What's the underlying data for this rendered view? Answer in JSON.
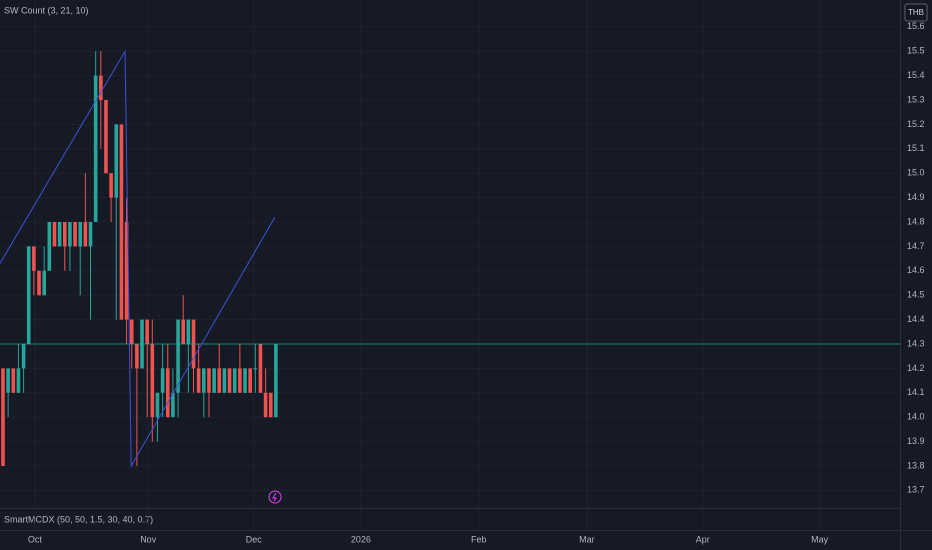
{
  "chart_data": {
    "type": "candlestick",
    "currency": "THB",
    "top_indicator": "SW Count (3, 21, 10)",
    "bottom_indicator": "SmartMCDX (50, 50, 1.5, 30, 40, 0.7)",
    "up_color": "#26a69a",
    "down_color": "#ef5350",
    "x": [
      0,
      1,
      2,
      3,
      4,
      5,
      6,
      7,
      8,
      9,
      10,
      11,
      12,
      13,
      14,
      15,
      16,
      17,
      18,
      19,
      20,
      21,
      22,
      23,
      24,
      25,
      26,
      27,
      28,
      29,
      30,
      31,
      32,
      33,
      34,
      35,
      36,
      37,
      38,
      39,
      40,
      41,
      42,
      43,
      44,
      45,
      46,
      47,
      48,
      49,
      50,
      51,
      52,
      53
    ],
    "open": [
      14.2,
      14.1,
      14.2,
      14.1,
      14.2,
      14.3,
      14.7,
      14.6,
      14.5,
      14.6,
      14.8,
      14.7,
      14.8,
      14.7,
      14.8,
      14.7,
      14.8,
      14.7,
      14.8,
      15.4,
      15.3,
      15.0,
      14.9,
      15.2,
      14.8,
      14.4,
      14.3,
      14.2,
      14.4,
      14.3,
      14.0,
      14.1,
      14.2,
      14.0,
      14.1,
      14.4,
      14.3,
      14.4,
      14.2,
      14.1,
      14.2,
      14.1,
      14.2,
      14.1,
      14.2,
      14.1,
      14.2,
      14.1,
      14.2,
      14.2,
      14.3,
      14.1,
      14.1,
      14.0
    ],
    "high": [
      14.2,
      14.2,
      14.2,
      14.3,
      14.3,
      14.7,
      14.7,
      14.6,
      14.7,
      14.8,
      14.8,
      14.8,
      14.8,
      14.8,
      14.8,
      14.8,
      15.0,
      14.8,
      15.5,
      15.5,
      15.3,
      15.0,
      15.2,
      15.2,
      14.9,
      14.4,
      14.3,
      14.4,
      14.4,
      14.4,
      14.1,
      14.3,
      14.3,
      14.2,
      14.4,
      14.5,
      14.4,
      14.4,
      14.3,
      14.2,
      14.2,
      14.2,
      14.3,
      14.2,
      14.2,
      14.2,
      14.3,
      14.2,
      14.2,
      14.3,
      14.3,
      14.2,
      14.1,
      14.3
    ],
    "low": [
      13.8,
      14.0,
      14.1,
      14.1,
      14.1,
      14.3,
      14.5,
      14.5,
      14.5,
      14.6,
      14.7,
      14.7,
      14.6,
      14.6,
      14.7,
      14.5,
      14.7,
      14.4,
      14.8,
      15.1,
      15.0,
      14.8,
      14.4,
      14.4,
      14.3,
      14.2,
      13.8,
      14.2,
      14.0,
      13.9,
      13.9,
      14.0,
      14.0,
      14.0,
      14.0,
      14.3,
      14.1,
      14.1,
      14.1,
      14.0,
      14.0,
      14.1,
      14.1,
      14.1,
      14.1,
      14.1,
      14.1,
      14.1,
      14.1,
      14.1,
      14.1,
      14.0,
      14.0,
      14.0
    ],
    "close": [
      13.8,
      14.2,
      14.1,
      14.2,
      14.3,
      14.7,
      14.6,
      14.5,
      14.6,
      14.8,
      14.7,
      14.8,
      14.7,
      14.8,
      14.7,
      14.8,
      14.7,
      14.8,
      15.4,
      15.3,
      15.0,
      14.9,
      15.2,
      14.4,
      14.4,
      14.3,
      14.2,
      14.4,
      14.3,
      14.0,
      14.1,
      14.2,
      14.0,
      14.1,
      14.4,
      14.3,
      14.4,
      14.2,
      14.1,
      14.2,
      14.1,
      14.2,
      14.1,
      14.2,
      14.1,
      14.2,
      14.1,
      14.2,
      14.1,
      14.2,
      14.1,
      14.0,
      14.0,
      14.3
    ],
    "zigzag": {
      "color": "#3f51d6",
      "x": [
        -0.58,
        23.7,
        24.9,
        52.8
      ],
      "values": [
        14.63,
        15.5,
        13.8,
        14.82
      ]
    },
    "xlim": [
      -0.58,
      174.2
    ],
    "xticks": [
      {
        "value": 6.2,
        "label": "Oct"
      },
      {
        "value": 28.2,
        "label": "Nov"
      },
      {
        "value": 48.7,
        "label": "Dec"
      },
      {
        "value": 69.5,
        "label": "2026"
      },
      {
        "value": 92.4,
        "label": "Feb"
      },
      {
        "value": 113.4,
        "label": "Mar"
      },
      {
        "value": 135.9,
        "label": "Apr"
      },
      {
        "value": 158.6,
        "label": "May"
      }
    ],
    "ylim": [
      13.64,
      15.71
    ],
    "yticks": [
      13.7,
      13.8,
      13.9,
      {
        "value": 14,
        "label": "14.0"
      },
      14.1,
      14.2,
      14.3,
      14.4,
      14.5,
      14.6,
      14.7,
      14.8,
      14.9,
      {
        "value": 15,
        "label": "15.0"
      },
      15.1,
      15.2,
      15.3,
      15.4,
      15.5,
      15.6
    ],
    "grid": true
  }
}
